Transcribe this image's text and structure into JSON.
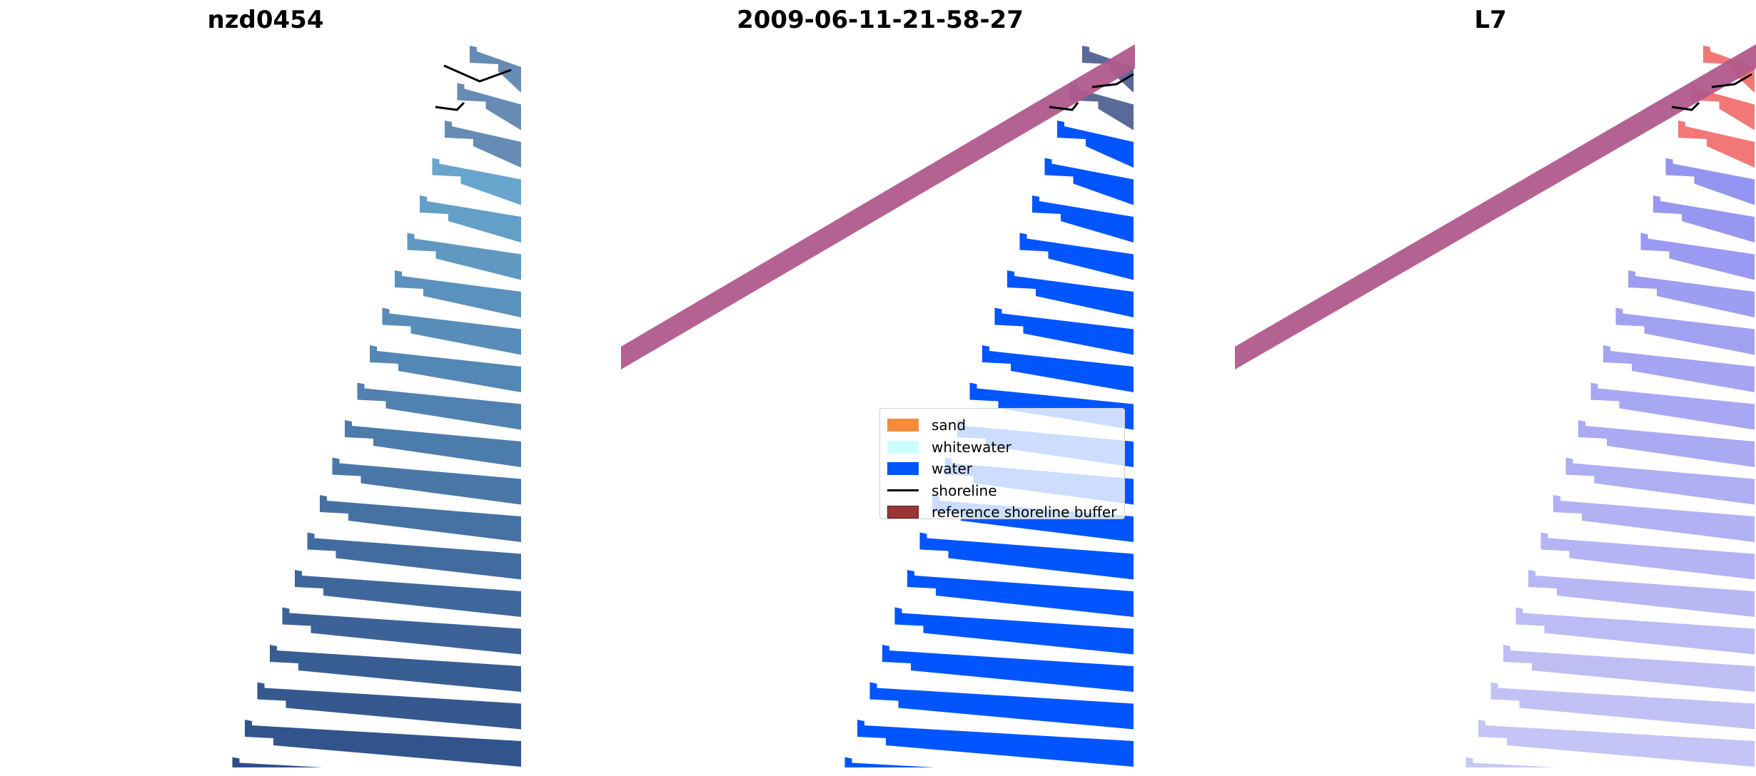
{
  "panels": [
    {
      "title": "nzd0454"
    },
    {
      "title": "2009-06-11-21-58-27"
    },
    {
      "title": "L7"
    }
  ],
  "legend": {
    "items": [
      {
        "label": "sand",
        "type": "patch",
        "color": "#f58b3b"
      },
      {
        "label": "whitewater",
        "type": "patch",
        "color": "#ccffff"
      },
      {
        "label": "water",
        "type": "patch",
        "color": "#0055ff"
      },
      {
        "label": "shoreline",
        "type": "line",
        "color": "#000000"
      },
      {
        "label": "reference shoreline buffer",
        "type": "patch",
        "color": "#9a3535"
      }
    ]
  },
  "colors": {
    "buffer": "#b05a8c",
    "water_class": "#0055ff",
    "rgb_light": "#78bfe0",
    "rgb_dark": "#2f4f88",
    "ndwi_blue": "#8a8af0",
    "ndwi_red": "#f06060",
    "shoreline": "#000000"
  }
}
